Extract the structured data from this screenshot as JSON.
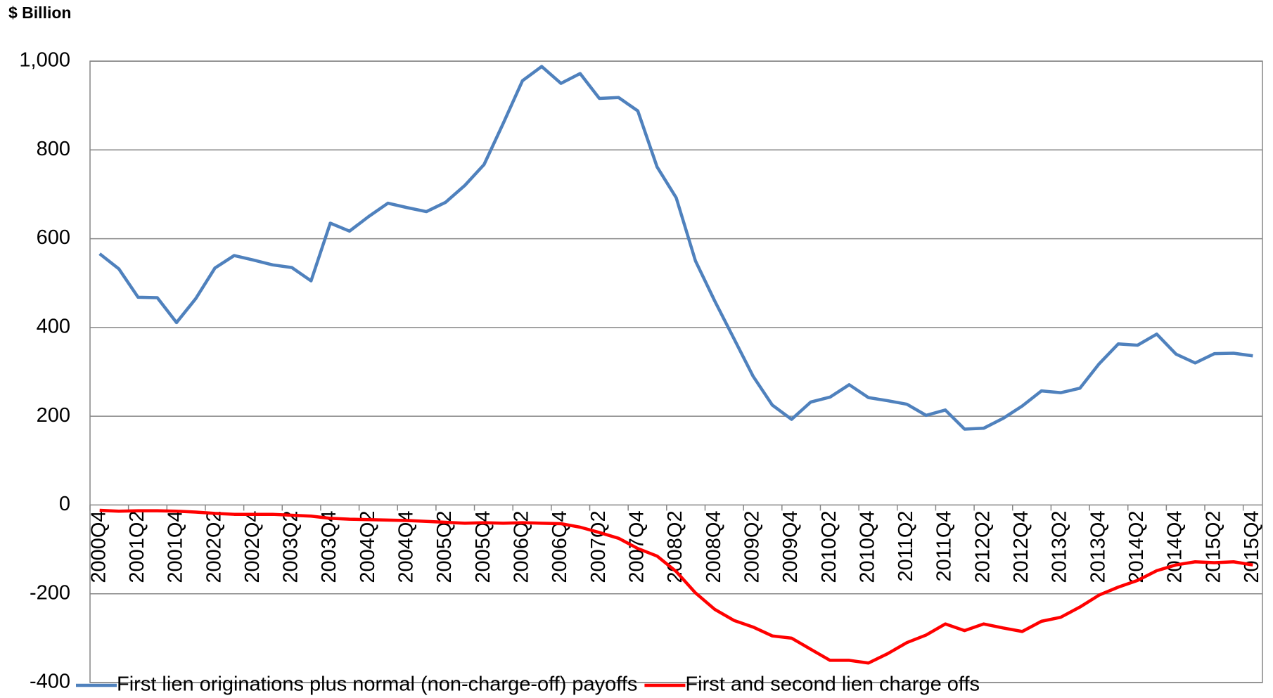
{
  "chart_data": {
    "type": "line",
    "y_axis_label": "$ Billion",
    "categories": [
      "2000Q4",
      null,
      "2001Q2",
      null,
      "2001Q4",
      null,
      "2002Q2",
      null,
      "2002Q4",
      null,
      "2003Q2",
      null,
      "2003Q4",
      null,
      "2004Q2",
      null,
      "2004Q4",
      null,
      "2005Q2",
      null,
      "2005Q4",
      null,
      "2006Q2",
      null,
      "2006Q4",
      null,
      "2007Q2",
      null,
      "2007Q4",
      null,
      "2008Q2",
      null,
      "2008Q4",
      null,
      "2009Q2",
      null,
      "2009Q4",
      null,
      "2010Q2",
      null,
      "2010Q4",
      null,
      "2011Q2",
      null,
      "2011Q4",
      null,
      "2012Q2",
      null,
      "2012Q4",
      null,
      "2013Q2",
      null,
      "2013Q4",
      null,
      "2014Q2",
      null,
      "2014Q4",
      null,
      "2015Q2",
      null,
      "2015Q4"
    ],
    "series": [
      {
        "name": "First lien originations plus normal (non-charge-off) payoffs",
        "color": "#4f81bd",
        "values": [
          566,
          532,
          468,
          467,
          411,
          465,
          534,
          562,
          552,
          541,
          535,
          505,
          635,
          617,
          650,
          680,
          670,
          661,
          682,
          720,
          767,
          860,
          956,
          988,
          950,
          972,
          916,
          918,
          888,
          762,
          692,
          550,
          460,
          375,
          290,
          225,
          193,
          232,
          243,
          271,
          242,
          235,
          227,
          202,
          214,
          171,
          173,
          195,
          223,
          257,
          253,
          263,
          318,
          363,
          360,
          385,
          340,
          320,
          341,
          342,
          336
        ]
      },
      {
        "name": "First and second lien charge offs",
        "color": "#ff0000",
        "values": [
          -12,
          -14,
          -13,
          -13,
          -14,
          -16,
          -19,
          -21,
          -21,
          -21,
          -23,
          -25,
          -30,
          -32,
          -33,
          -34,
          -35,
          -37,
          -39,
          -41,
          -40,
          -41,
          -40,
          -41,
          -42,
          -50,
          -62,
          -75,
          -98,
          -115,
          -150,
          -198,
          -235,
          -260,
          -275,
          -295,
          -300,
          -325,
          -350,
          -350,
          -356,
          -335,
          -310,
          -293,
          -268,
          -283,
          -268,
          -277,
          -285,
          -262,
          -253,
          -230,
          -203,
          -185,
          -170,
          -148,
          -135,
          -128,
          -130,
          -128,
          -135
        ]
      }
    ],
    "ylim": [
      -400,
      1000
    ],
    "yticks": [
      -400,
      -200,
      0,
      200,
      400,
      600,
      800,
      {
        "value": 1000,
        "label": "1,000"
      }
    ],
    "grid": true
  }
}
